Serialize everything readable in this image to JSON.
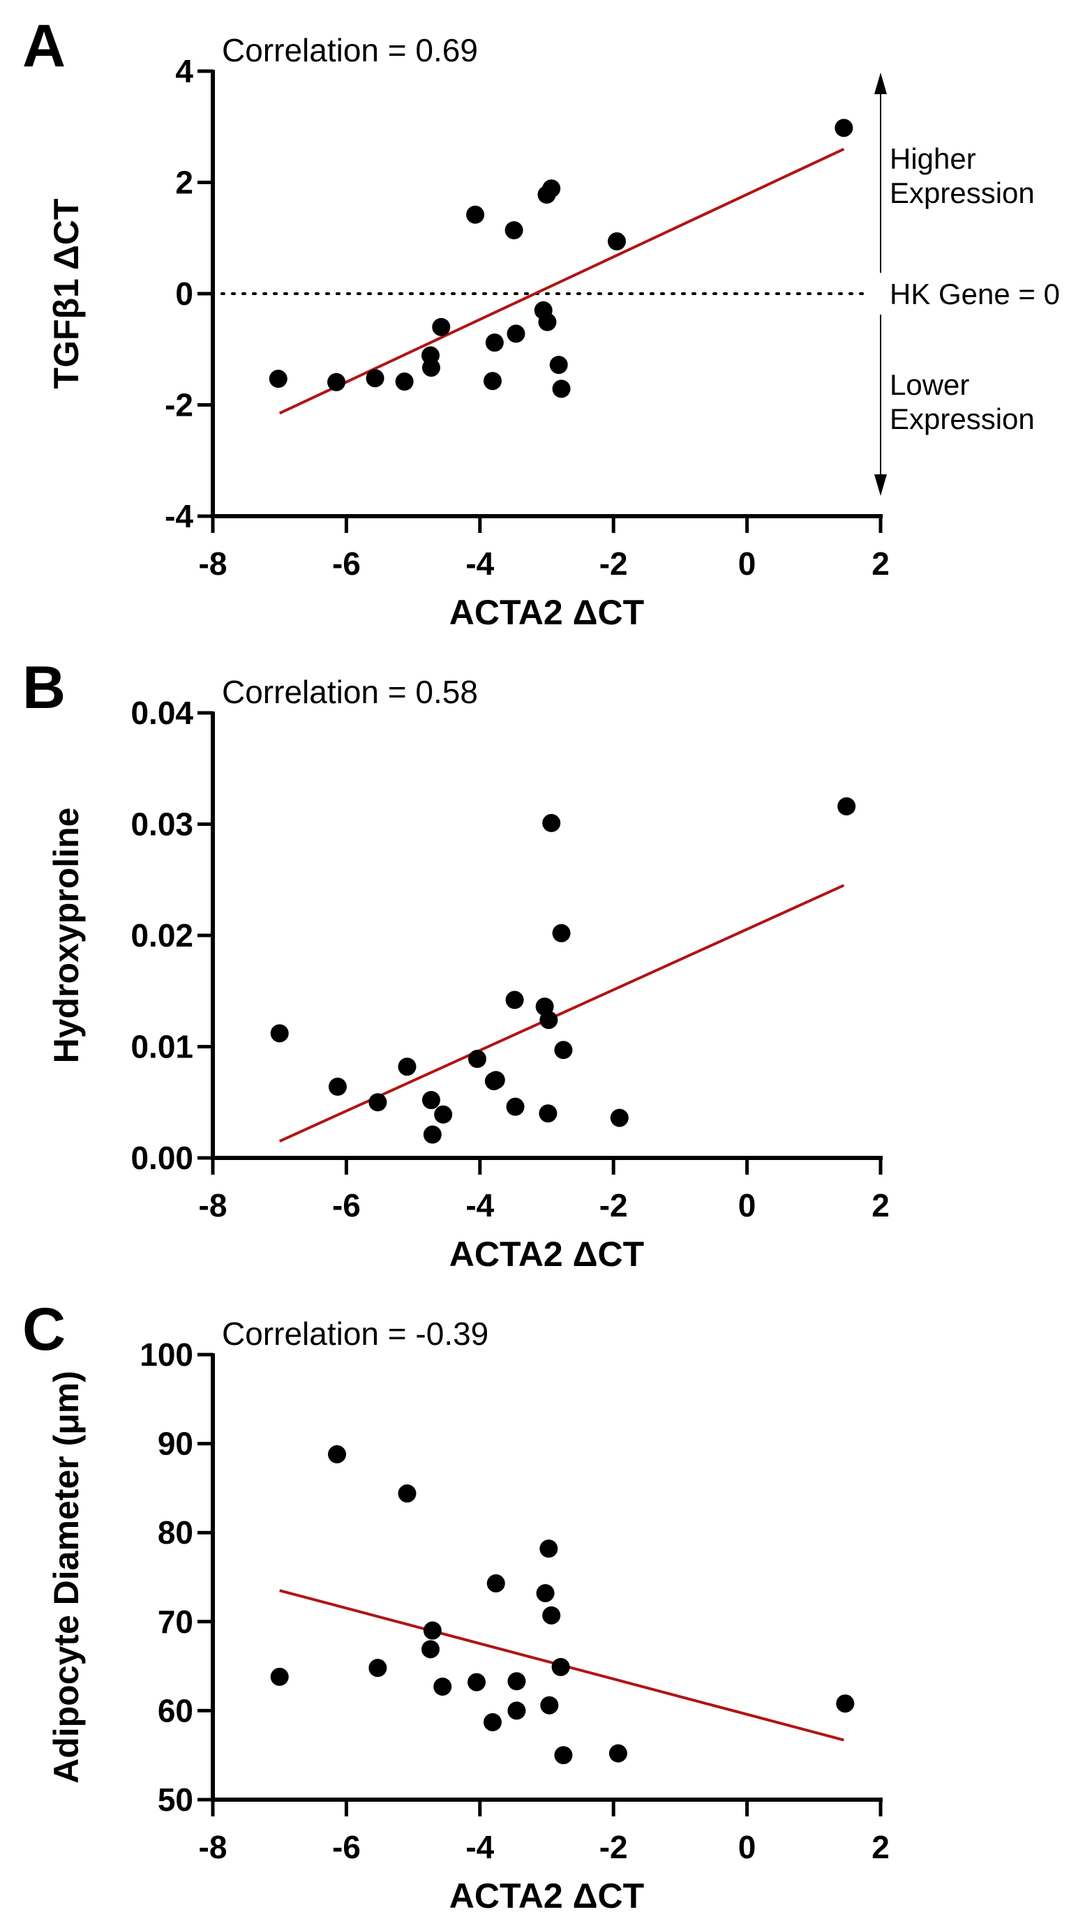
{
  "chart_data": [
    {
      "type": "scatter",
      "panel_label": "A",
      "title": "Correlation = 0.69",
      "xlabel": "ACTA2 ΔCT",
      "ylabel": "TGFβ1 ΔCT",
      "xlim": [
        -8,
        2
      ],
      "ylim": [
        -4,
        4
      ],
      "xticks": [
        -8,
        -6,
        -4,
        -2,
        0,
        2
      ],
      "xtick_labels": [
        "-8",
        "-6",
        "-4",
        "-2",
        "0",
        "2"
      ],
      "yticks": [
        -4,
        -2,
        0,
        2,
        4
      ],
      "ytick_labels": [
        "-4",
        "-2",
        "0",
        "2",
        "4"
      ],
      "points": [
        [
          -7.02,
          -1.53
        ],
        [
          -6.15,
          -1.59
        ],
        [
          -5.57,
          -1.52
        ],
        [
          -5.13,
          -1.58
        ],
        [
          -4.74,
          -1.11
        ],
        [
          -4.73,
          -1.33
        ],
        [
          -4.58,
          -0.6
        ],
        [
          -4.07,
          1.42
        ],
        [
          -3.81,
          -1.57
        ],
        [
          -3.78,
          -0.88
        ],
        [
          -3.49,
          1.14
        ],
        [
          -3.46,
          -0.72
        ],
        [
          -3.05,
          -0.3
        ],
        [
          -2.99,
          -0.51
        ],
        [
          -3.0,
          1.78
        ],
        [
          -2.93,
          1.89
        ],
        [
          -2.82,
          -1.28
        ],
        [
          -2.78,
          -1.71
        ],
        [
          -1.95,
          0.94
        ],
        [
          1.45,
          2.98
        ]
      ],
      "fit_line": [
        [
          -7.0,
          -2.15
        ],
        [
          1.45,
          2.6
        ]
      ],
      "reference_line": {
        "y": 0,
        "style": "dotted",
        "label": "HK Gene = 0"
      },
      "annotations": {
        "upper_line1": "Higher",
        "upper_line2": "Expression",
        "lower_line1": "Lower",
        "lower_line2": "Expression"
      },
      "grid": false,
      "point_color": "#000000",
      "line_color": "#B01515"
    },
    {
      "type": "scatter",
      "panel_label": "B",
      "title": "Correlation = 0.58",
      "xlabel": "ACTA2 ΔCT",
      "ylabel": "Hydroxyproline",
      "xlim": [
        -8,
        2
      ],
      "ylim": [
        0,
        0.04
      ],
      "xticks": [
        -8,
        -6,
        -4,
        -2,
        0,
        2
      ],
      "xtick_labels": [
        "-8",
        "-6",
        "-4",
        "-2",
        "0",
        "2"
      ],
      "yticks": [
        0,
        0.01,
        0.02,
        0.03,
        0.04
      ],
      "ytick_labels": [
        "0.00",
        "0.01",
        "0.02",
        "0.03",
        "0.04"
      ],
      "points": [
        [
          -7.0,
          0.0112
        ],
        [
          -6.13,
          0.0064
        ],
        [
          -5.53,
          0.005
        ],
        [
          -5.09,
          0.0082
        ],
        [
          -4.73,
          0.0052
        ],
        [
          -4.71,
          0.0021
        ],
        [
          -4.55,
          0.0039
        ],
        [
          -4.04,
          0.0089
        ],
        [
          -3.79,
          0.0069
        ],
        [
          -3.76,
          0.007
        ],
        [
          -3.48,
          0.0142
        ],
        [
          -3.47,
          0.0046
        ],
        [
          -3.03,
          0.0136
        ],
        [
          -2.97,
          0.0124
        ],
        [
          -2.98,
          0.004
        ],
        [
          -2.93,
          0.0301
        ],
        [
          -2.78,
          0.0202
        ],
        [
          -2.75,
          0.0097
        ],
        [
          -1.91,
          0.0036
        ],
        [
          1.49,
          0.0316
        ]
      ],
      "fit_line": [
        [
          -7.0,
          0.0015
        ],
        [
          1.45,
          0.0245
        ]
      ],
      "grid": false,
      "point_color": "#000000",
      "line_color": "#B01515"
    },
    {
      "type": "scatter",
      "panel_label": "C",
      "title": "Correlation = -0.39",
      "xlabel": "ACTA2 ΔCT",
      "ylabel": "Adipocyte Diameter (μm)",
      "xlim": [
        -8,
        2
      ],
      "ylim": [
        50,
        100
      ],
      "xticks": [
        -8,
        -6,
        -4,
        -2,
        0,
        2
      ],
      "xtick_labels": [
        "-8",
        "-6",
        "-4",
        "-2",
        "0",
        "2"
      ],
      "yticks": [
        50,
        60,
        70,
        80,
        90,
        100
      ],
      "ytick_labels": [
        "50",
        "60",
        "70",
        "80",
        "90",
        "100"
      ],
      "points": [
        [
          -7.0,
          63.8
        ],
        [
          -6.14,
          88.8
        ],
        [
          -5.53,
          64.8
        ],
        [
          -5.09,
          84.4
        ],
        [
          -4.71,
          69.0
        ],
        [
          -4.74,
          66.9
        ],
        [
          -4.56,
          62.7
        ],
        [
          -4.05,
          63.2
        ],
        [
          -3.81,
          58.7
        ],
        [
          -3.76,
          74.3
        ],
        [
          -3.45,
          63.3
        ],
        [
          -3.45,
          60.0
        ],
        [
          -3.02,
          73.2
        ],
        [
          -2.97,
          78.2
        ],
        [
          -2.93,
          70.7
        ],
        [
          -2.96,
          60.6
        ],
        [
          -2.79,
          64.9
        ],
        [
          -2.75,
          55.0
        ],
        [
          -1.93,
          55.2
        ],
        [
          1.47,
          60.8
        ]
      ],
      "fit_line": [
        [
          -7.0,
          73.5
        ],
        [
          1.45,
          56.7
        ]
      ],
      "grid": false,
      "point_color": "#000000",
      "line_color": "#B01515"
    }
  ]
}
